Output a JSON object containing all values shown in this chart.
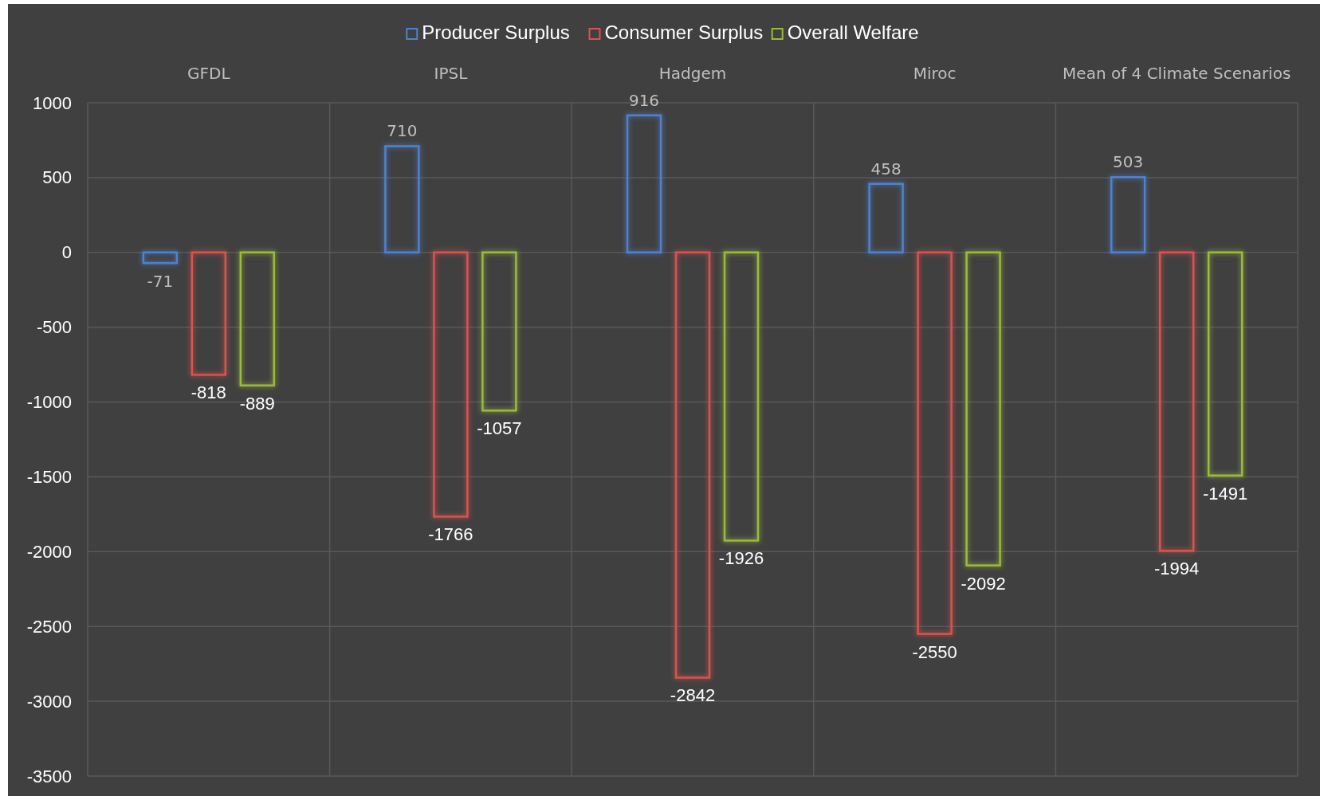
{
  "chart_data": {
    "type": "bar",
    "categories": [
      "GFDL",
      "IPSL",
      "Hadgem",
      "Miroc",
      "Mean of 4 Climate Scenarios"
    ],
    "series": [
      {
        "name": "Producer Surplus",
        "color": "#4f81d0",
        "values": [
          -71,
          710,
          916,
          458,
          503
        ]
      },
      {
        "name": "Consumer Surplus",
        "color": "#d9534f",
        "values": [
          -818,
          -1766,
          -2842,
          -2550,
          -1994
        ]
      },
      {
        "name": "Overall Welfare",
        "color": "#9bbb3b",
        "values": [
          -889,
          -1057,
          -1926,
          -2092,
          -1491
        ]
      }
    ],
    "ylim": [
      -3500,
      1000
    ],
    "yticks": [
      -3500,
      -3000,
      -2500,
      -2000,
      -1500,
      -1000,
      -500,
      0,
      500,
      1000
    ],
    "grid": true,
    "legend": "top",
    "data_labels": true
  }
}
